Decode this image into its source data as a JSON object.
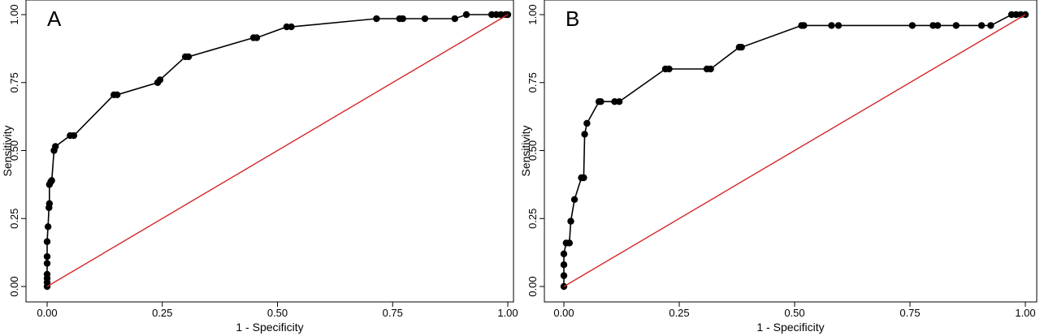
{
  "chart_data": [
    {
      "type": "line",
      "panel_label": "A",
      "xlabel": "1 - Specificity",
      "ylabel": "Sensitivity",
      "xlim": [
        0,
        1
      ],
      "ylim": [
        0,
        1
      ],
      "xticks": [
        "0.00",
        "0.25",
        "0.50",
        "0.75",
        "1.00"
      ],
      "yticks": [
        "0.00",
        "0.25",
        "0.50",
        "0.75",
        "1.00"
      ],
      "grid": false,
      "series": [
        {
          "role": "roc",
          "color": "#000000",
          "markers": true,
          "x": [
            0,
            0,
            0,
            0,
            0,
            0,
            0,
            0.002,
            0.004,
            0.005,
            0.005,
            0.008,
            0.01,
            0.015,
            0.018,
            0.05,
            0.058,
            0.145,
            0.152,
            0.24,
            0.245,
            0.3,
            0.307,
            0.448,
            0.455,
            0.52,
            0.53,
            0.715,
            0.765,
            0.772,
            0.82,
            0.885,
            0.91,
            0.965,
            0.975,
            0.985,
            0.995,
            1.0
          ],
          "y": [
            0,
            0.015,
            0.03,
            0.045,
            0.085,
            0.11,
            0.165,
            0.22,
            0.29,
            0.305,
            0.375,
            0.385,
            0.39,
            0.5,
            0.515,
            0.555,
            0.555,
            0.705,
            0.705,
            0.75,
            0.76,
            0.845,
            0.845,
            0.915,
            0.915,
            0.955,
            0.955,
            0.985,
            0.985,
            0.985,
            0.985,
            0.985,
            1.0,
            1.0,
            1.0,
            1.0,
            1.0,
            1.0
          ]
        },
        {
          "role": "reference",
          "color": "#d62728",
          "markers": false,
          "x": [
            0,
            1
          ],
          "y": [
            0,
            1
          ]
        }
      ]
    },
    {
      "type": "line",
      "panel_label": "B",
      "xlabel": "1 - Specificity",
      "ylabel": "Sensitivity",
      "xlim": [
        0,
        1
      ],
      "ylim": [
        0,
        1
      ],
      "xticks": [
        "0.00",
        "0.25",
        "0.50",
        "0.75",
        "1.00"
      ],
      "yticks": [
        "0.00",
        "0.25",
        "0.50",
        "0.75",
        "1.00"
      ],
      "grid": false,
      "series": [
        {
          "role": "roc",
          "color": "#000000",
          "markers": true,
          "x": [
            0,
            0,
            0,
            0,
            0.005,
            0.012,
            0.015,
            0.023,
            0.038,
            0.043,
            0.045,
            0.05,
            0.076,
            0.08,
            0.11,
            0.12,
            0.22,
            0.228,
            0.31,
            0.318,
            0.38,
            0.385,
            0.515,
            0.52,
            0.58,
            0.595,
            0.755,
            0.8,
            0.81,
            0.85,
            0.905,
            0.925,
            0.97,
            0.98,
            0.99,
            1.0
          ],
          "y": [
            0,
            0.04,
            0.08,
            0.12,
            0.16,
            0.16,
            0.24,
            0.32,
            0.4,
            0.4,
            0.56,
            0.6,
            0.68,
            0.68,
            0.68,
            0.68,
            0.8,
            0.8,
            0.8,
            0.8,
            0.88,
            0.88,
            0.96,
            0.96,
            0.96,
            0.96,
            0.96,
            0.96,
            0.96,
            0.96,
            0.96,
            0.96,
            1.0,
            1.0,
            1.0,
            1.0
          ]
        },
        {
          "role": "reference",
          "color": "#d62728",
          "markers": false,
          "x": [
            0,
            1
          ],
          "y": [
            0,
            1
          ]
        }
      ]
    }
  ]
}
